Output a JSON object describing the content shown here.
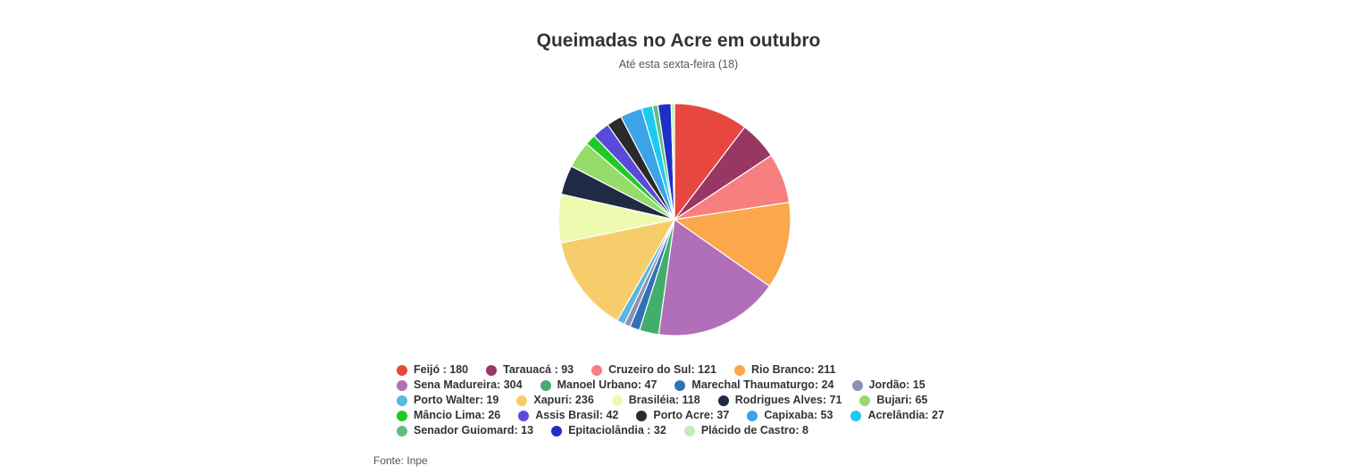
{
  "chart_data": {
    "type": "pie",
    "title": "Queimadas no Acre em outubro",
    "subtitle": "Até esta sexta-feira (18)",
    "legend_position": "bottom",
    "slices": [
      {
        "label": "Feijó ",
        "value": 180,
        "color": "#e8473f"
      },
      {
        "label": "Tarauacá ",
        "value": 93,
        "color": "#983764"
      },
      {
        "label": "Cruzeiro do Sul",
        "value": 121,
        "color": "#f77f7f"
      },
      {
        "label": "Rio Branco",
        "value": 211,
        "color": "#fba74b"
      },
      {
        "label": "Sena Madureira",
        "value": 304,
        "color": "#b26fb9"
      },
      {
        "label": "Manoel Urbano",
        "value": 47,
        "color": "#43ad6c"
      },
      {
        "label": "Marechal Thaumaturgo",
        "value": 24,
        "color": "#2f72b6"
      },
      {
        "label": "Jordão",
        "value": 15,
        "color": "#8d90b4"
      },
      {
        "label": "Porto Walter",
        "value": 19,
        "color": "#5ab7e0"
      },
      {
        "label": "Xapuri",
        "value": 236,
        "color": "#f7cd6b"
      },
      {
        "label": "Brasiléia",
        "value": 118,
        "color": "#eefab0"
      },
      {
        "label": "Rodrigues Alves",
        "value": 71,
        "color": "#1f2a44"
      },
      {
        "label": "Bujari",
        "value": 65,
        "color": "#96dc6a"
      },
      {
        "label": "Mâncio Lima",
        "value": 26,
        "color": "#1fca26"
      },
      {
        "label": "Assis Brasil",
        "value": 42,
        "color": "#5a4ad9"
      },
      {
        "label": "Porto Acre",
        "value": 37,
        "color": "#2a2a2a"
      },
      {
        "label": "Capixaba",
        "value": 53,
        "color": "#3ba4e8"
      },
      {
        "label": "Acrelândia",
        "value": 27,
        "color": "#1ccbec"
      },
      {
        "label": "Senador Guiomard",
        "value": 13,
        "color": "#5fbf83"
      },
      {
        "label": "Epitaciolândia ",
        "value": 32,
        "color": "#1f2fc8"
      },
      {
        "label": "Plácido de Castro",
        "value": 8,
        "color": "#bff0b5"
      }
    ]
  },
  "source": "Fonte: Inpe"
}
